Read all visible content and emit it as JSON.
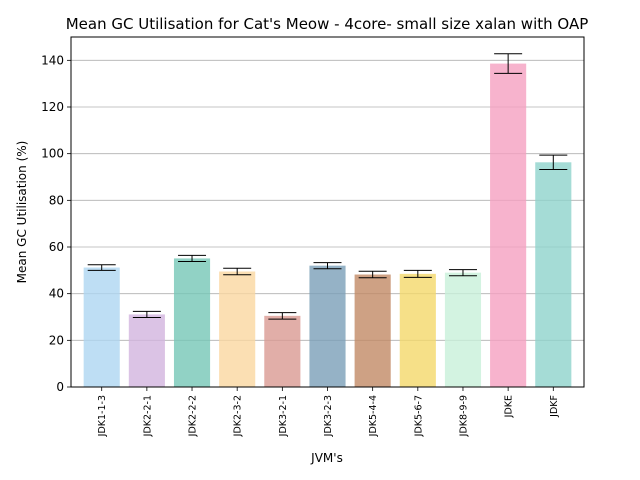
{
  "chart_data": {
    "type": "bar",
    "title": "Mean GC Utilisation for Cat's Meow - 4core- small size xalan with OAP",
    "xlabel": "JVM's",
    "ylabel": "Mean GC Utilisation (%)",
    "ylim": [
      0,
      150
    ],
    "yticks": [
      0,
      20,
      40,
      60,
      80,
      100,
      120,
      140
    ],
    "grid": "horizontal",
    "categories": [
      "JDK1-1-3",
      "JDK2-2-1",
      "JDK2-2-2",
      "JDK2-3-2",
      "JDK3-2-1",
      "JDK3-2-3",
      "JDK5-4-4",
      "JDK5-6-7",
      "JDK8-9-9",
      "JDKE",
      "JDKF"
    ],
    "values": [
      51.2,
      31.1,
      55.1,
      49.5,
      30.5,
      52.0,
      48.2,
      48.5,
      49.0,
      138.6,
      96.3
    ],
    "errors": [
      1.2,
      1.3,
      1.3,
      1.4,
      1.4,
      1.3,
      1.4,
      1.5,
      1.3,
      4.2,
      3.1
    ],
    "colors": [
      "#AED6F1",
      "#D2B4DE",
      "#76C7B7",
      "#FAD7A0",
      "#D99A92",
      "#7A9FB8",
      "#C28A65",
      "#F4D86A",
      "#C8F0DA",
      "#F5A0C0",
      "#8FD3CC"
    ]
  }
}
